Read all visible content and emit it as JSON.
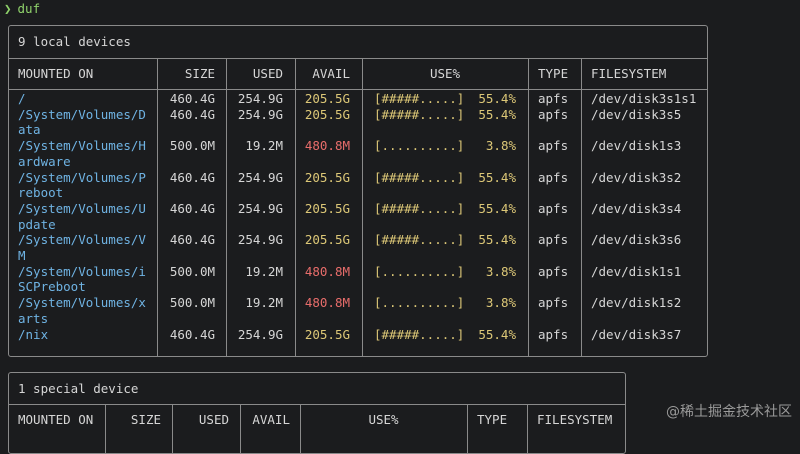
{
  "prompt": {
    "arrow": "❯",
    "command": "duf"
  },
  "local_table": {
    "title": "9 local devices",
    "headers": [
      "MOUNTED ON",
      "SIZE",
      "USED",
      "AVAIL",
      "USE%",
      "TYPE",
      "FILESYSTEM"
    ],
    "rows": [
      {
        "mount": "/",
        "mount2": "",
        "size": "460.4G",
        "used": "254.9G",
        "avail": "205.5G",
        "bar": "[#####.....]",
        "use": "55.4%",
        "type": "apfs",
        "fs": "/dev/disk3s1s1",
        "low": false
      },
      {
        "mount": "/System/Volumes/D",
        "mount2": "ata",
        "size": "460.4G",
        "used": "254.9G",
        "avail": "205.5G",
        "bar": "[#####.....]",
        "use": "55.4%",
        "type": "apfs",
        "fs": "/dev/disk3s5",
        "low": false
      },
      {
        "mount": "/System/Volumes/H",
        "mount2": "ardware",
        "size": "500.0M",
        "used": "19.2M",
        "avail": "480.8M",
        "bar": "[..........]",
        "use": "3.8%",
        "type": "apfs",
        "fs": "/dev/disk1s3",
        "low": true
      },
      {
        "mount": "/System/Volumes/P",
        "mount2": "reboot",
        "size": "460.4G",
        "used": "254.9G",
        "avail": "205.5G",
        "bar": "[#####.....]",
        "use": "55.4%",
        "type": "apfs",
        "fs": "/dev/disk3s2",
        "low": false
      },
      {
        "mount": "/System/Volumes/U",
        "mount2": "pdate",
        "size": "460.4G",
        "used": "254.9G",
        "avail": "205.5G",
        "bar": "[#####.....]",
        "use": "55.4%",
        "type": "apfs",
        "fs": "/dev/disk3s4",
        "low": false
      },
      {
        "mount": "/System/Volumes/V",
        "mount2": "M",
        "size": "460.4G",
        "used": "254.9G",
        "avail": "205.5G",
        "bar": "[#####.....]",
        "use": "55.4%",
        "type": "apfs",
        "fs": "/dev/disk3s6",
        "low": false
      },
      {
        "mount": "/System/Volumes/i",
        "mount2": "SCPreboot",
        "size": "500.0M",
        "used": "19.2M",
        "avail": "480.8M",
        "bar": "[..........]",
        "use": "3.8%",
        "type": "apfs",
        "fs": "/dev/disk1s1",
        "low": true
      },
      {
        "mount": "/System/Volumes/x",
        "mount2": "arts",
        "size": "500.0M",
        "used": "19.2M",
        "avail": "480.8M",
        "bar": "[..........]",
        "use": "3.8%",
        "type": "apfs",
        "fs": "/dev/disk1s2",
        "low": true
      },
      {
        "mount": "/nix",
        "mount2": "",
        "size": "460.4G",
        "used": "254.9G",
        "avail": "205.5G",
        "bar": "[#####.....]",
        "use": "55.4%",
        "type": "apfs",
        "fs": "/dev/disk3s7",
        "low": false
      }
    ]
  },
  "special_table": {
    "title": "1 special device",
    "headers": [
      "MOUNTED ON",
      "SIZE",
      "USED",
      "AVAIL",
      "USE%",
      "TYPE",
      "FILESYSTEM"
    ]
  },
  "watermark": "@稀土掘金技术社区",
  "colors": {
    "background": "#1b1c1e",
    "mount": "#6fb3e3",
    "ok": "#dcc777",
    "low": "#e86d6b",
    "prompt": "#8fd26b"
  }
}
